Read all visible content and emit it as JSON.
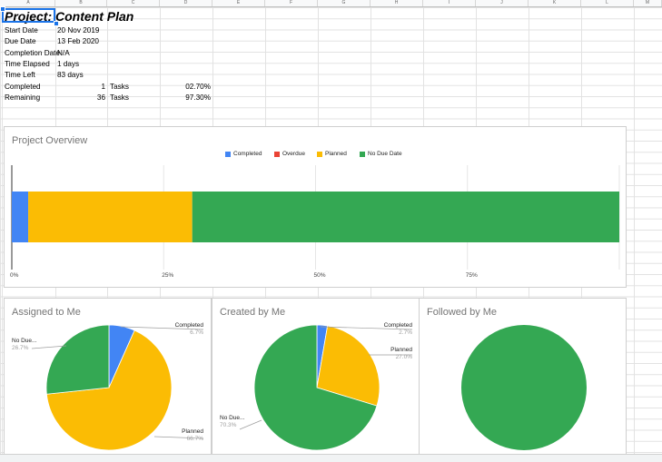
{
  "sheet": {
    "columns": [
      "A",
      "B",
      "C",
      "D",
      "E",
      "F",
      "G",
      "H",
      "I",
      "J",
      "K",
      "L",
      "M"
    ],
    "title": "Project: Content Plan",
    "rows": [
      {
        "label": "Start Date",
        "value": "20 Nov 2019"
      },
      {
        "label": "Due Date",
        "value": "13 Feb 2020"
      },
      {
        "label": "Completion Date",
        "value": "N/A"
      },
      {
        "label": "Time Elapsed",
        "value": "1 days"
      },
      {
        "label": "Time Left",
        "value": "83 days"
      }
    ],
    "completed": {
      "label": "Completed",
      "count": "1",
      "unit": "Tasks",
      "pct": "02.70%"
    },
    "remaining": {
      "label": "Remaining",
      "count": "36",
      "unit": "Tasks",
      "pct": "97.30%"
    }
  },
  "colors": {
    "completed": "#4285f4",
    "overdue": "#ea4335",
    "planned": "#fbbc04",
    "no_due": "#34a853",
    "selection": "#1a73e8"
  },
  "chart_data": [
    {
      "type": "bar",
      "orientation": "horizontal",
      "stacked": "percent",
      "title": "Project Overview",
      "legend": [
        "Completed",
        "Overdue",
        "Planned",
        "No Due Date"
      ],
      "legend_position": "top",
      "series": [
        {
          "name": "Completed",
          "value": 2.7
        },
        {
          "name": "Overdue",
          "value": 0
        },
        {
          "name": "Planned",
          "value": 27.0
        },
        {
          "name": "No Due Date",
          "value": 70.3
        }
      ],
      "x_ticks": [
        "0%",
        "25%",
        "50%",
        "75%"
      ],
      "xlim": [
        0,
        100
      ],
      "grid": true
    },
    {
      "type": "pie",
      "title": "Assigned to Me",
      "slices": [
        {
          "name": "Completed",
          "value": 6.7,
          "label": "Completed",
          "pct": "6.7%"
        },
        {
          "name": "Planned",
          "value": 66.7,
          "label": "Planned",
          "pct": "66.7%"
        },
        {
          "name": "No Due Date",
          "value": 26.7,
          "label": "No Due...",
          "pct": "26.7%"
        }
      ]
    },
    {
      "type": "pie",
      "title": "Created by Me",
      "slices": [
        {
          "name": "Completed",
          "value": 2.7,
          "label": "Completed",
          "pct": "2.7%"
        },
        {
          "name": "Planned",
          "value": 27.0,
          "label": "Planned",
          "pct": "27.0%"
        },
        {
          "name": "No Due Date",
          "value": 70.3,
          "label": "No Due...",
          "pct": "70.3%"
        }
      ]
    },
    {
      "type": "pie",
      "title": "Followed by Me",
      "slices": [
        {
          "name": "No Due Date",
          "value": 100
        }
      ]
    }
  ]
}
